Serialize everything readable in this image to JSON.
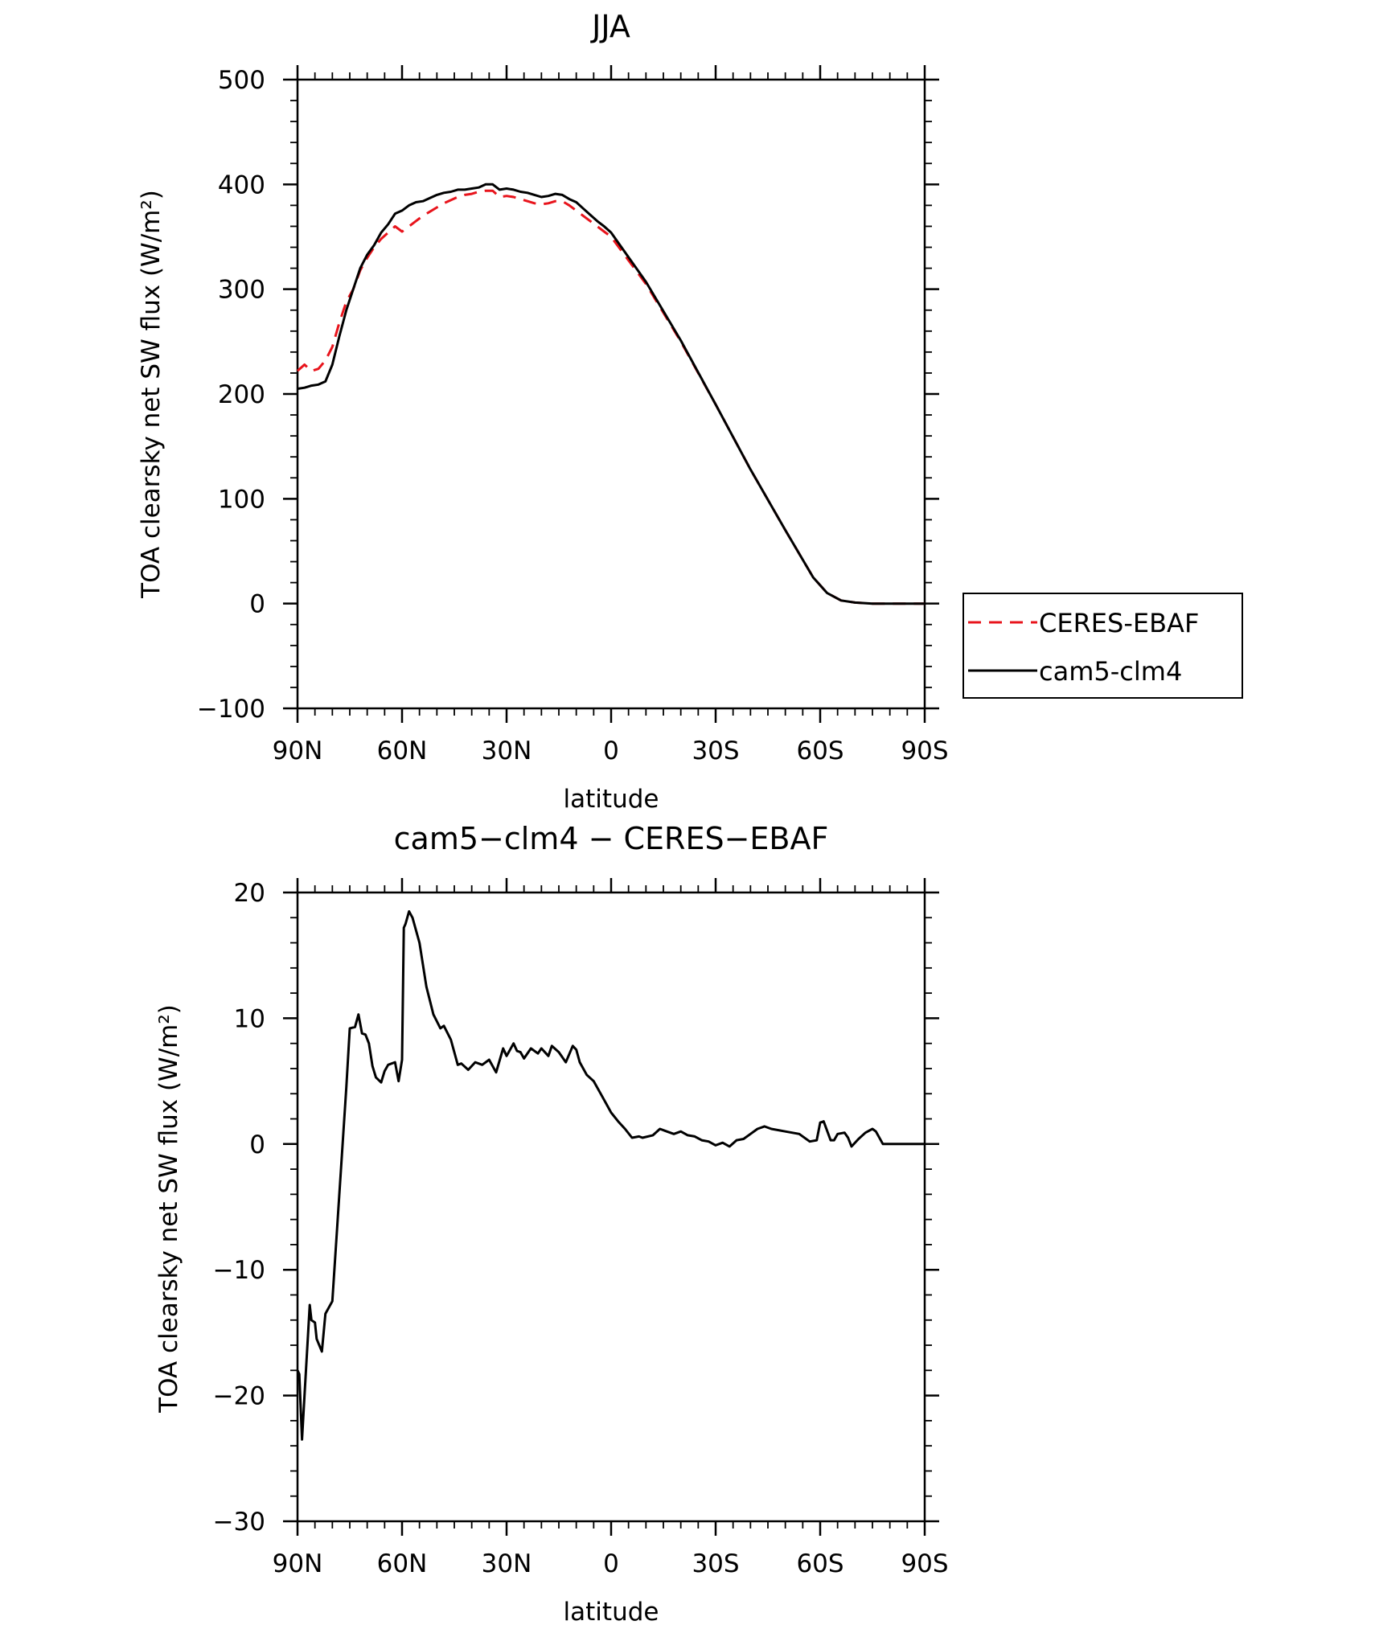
{
  "chart_data": [
    {
      "type": "line",
      "title": "JJA",
      "xlabel": "latitude",
      "ylabel": "TOA clearsky net SW flux (W/m²)",
      "xlim": [
        90,
        -90
      ],
      "ylim": [
        -100,
        500
      ],
      "xticks": [
        "90N",
        "60N",
        "30N",
        "0",
        "30S",
        "60S",
        "90S"
      ],
      "yticks": [
        "500",
        "400",
        "300",
        "200",
        "100",
        "0",
        "−100"
      ],
      "legend_position": "right",
      "series": [
        {
          "name": "CERES-EBAF",
          "style": "dashed",
          "color": "#e8141c",
          "x": [
            90,
            88,
            86,
            84,
            82,
            80,
            78,
            76,
            74,
            72,
            70,
            68,
            66,
            64,
            62,
            60,
            58,
            56,
            54,
            52,
            50,
            48,
            46,
            44,
            42,
            40,
            38,
            36,
            34,
            32,
            30,
            28,
            26,
            24,
            22,
            20,
            18,
            16,
            14,
            12,
            10,
            8,
            6,
            4,
            2,
            0,
            -10,
            -20,
            -30,
            -40,
            -50,
            -58,
            -62,
            -66,
            -70,
            -75,
            -80,
            -85,
            -90
          ],
          "y": [
            222,
            228,
            222,
            224,
            232,
            245,
            268,
            288,
            300,
            318,
            330,
            340,
            348,
            354,
            360,
            355,
            360,
            365,
            370,
            374,
            378,
            382,
            385,
            388,
            390,
            391,
            393,
            394,
            394,
            388,
            389,
            388,
            386,
            384,
            382,
            381,
            382,
            384,
            384,
            380,
            375,
            370,
            365,
            360,
            355,
            350,
            305,
            250,
            190,
            128,
            70,
            25,
            10,
            3,
            1,
            0,
            0,
            0,
            0
          ]
        },
        {
          "name": "cam5-clm4",
          "style": "solid",
          "color": "#000000",
          "x": [
            90,
            88,
            86,
            84,
            82,
            80,
            78,
            76,
            74,
            72,
            70,
            68,
            66,
            64,
            62,
            60,
            58,
            56,
            54,
            52,
            50,
            48,
            46,
            44,
            42,
            40,
            38,
            36,
            34,
            32,
            30,
            28,
            26,
            24,
            22,
            20,
            18,
            16,
            14,
            12,
            10,
            8,
            6,
            4,
            2,
            0,
            -10,
            -20,
            -30,
            -40,
            -50,
            -58,
            -62,
            -66,
            -70,
            -75,
            -80,
            -85,
            -90
          ],
          "y": [
            205,
            206,
            208,
            209,
            212,
            228,
            255,
            280,
            300,
            320,
            333,
            342,
            354,
            362,
            372,
            375,
            380,
            383,
            384,
            387,
            390,
            392,
            393,
            395,
            395,
            396,
            397,
            400,
            400,
            395,
            396,
            395,
            393,
            392,
            390,
            388,
            389,
            391,
            390,
            386,
            383,
            377,
            371,
            365,
            360,
            354,
            307,
            251,
            190,
            128,
            70,
            25,
            10,
            3,
            1,
            0,
            0,
            0,
            0
          ]
        }
      ]
    },
    {
      "type": "line",
      "title": "cam5−clm4 − CERES−EBAF",
      "xlabel": "latitude",
      "ylabel": "TOA clearsky net SW flux (W/m²)",
      "xlim": [
        90,
        -90
      ],
      "ylim": [
        -30,
        20
      ],
      "xticks": [
        "90N",
        "60N",
        "30N",
        "0",
        "30S",
        "60S",
        "90S"
      ],
      "yticks": [
        "20",
        "10",
        "0",
        "−10",
        "−20",
        "−30"
      ],
      "series": [
        {
          "style": "solid",
          "color": "#000000",
          "x": [
            90,
            89.5,
            88.7,
            88,
            86.5,
            86,
            85,
            84.5,
            83,
            82,
            80,
            78,
            76,
            75,
            73.5,
            72.5,
            71.5,
            70.5,
            69.5,
            68.5,
            67.5,
            66,
            65,
            64,
            62,
            61,
            60,
            59.5,
            59,
            58,
            57,
            55,
            53,
            51,
            49,
            48,
            46,
            45,
            44,
            43,
            41,
            39,
            37,
            35,
            33,
            31,
            30,
            28,
            27,
            26,
            25,
            23,
            21,
            20,
            18,
            17,
            15,
            13,
            11,
            10,
            9,
            7,
            5,
            3,
            1,
            0,
            -2,
            -4,
            -6,
            -8,
            -9,
            -12,
            -14,
            -16,
            -18,
            -20,
            -22,
            -24,
            -26,
            -28,
            -30,
            -32,
            -34,
            -36,
            -38,
            -40,
            -42,
            -44,
            -46,
            -50,
            -54,
            -57,
            -59,
            -60,
            -61,
            -63,
            -64,
            -65,
            -67,
            -68,
            -69,
            -71,
            -73,
            -75,
            -76,
            -78,
            -80,
            -90
          ],
          "y": [
            -18,
            -18.3,
            -23.5,
            -20,
            -12.8,
            -14,
            -14.2,
            -15.5,
            -16.5,
            -13.5,
            -12.5,
            -4,
            4.5,
            9.2,
            9.3,
            10.3,
            8.8,
            8.7,
            8.0,
            6.2,
            5.3,
            4.9,
            5.8,
            6.3,
            6.5,
            5.0,
            6.7,
            17.2,
            17.5,
            18.5,
            18.0,
            16.0,
            12.5,
            10.3,
            9.2,
            9.4,
            8.3,
            7.3,
            6.3,
            6.4,
            5.9,
            6.5,
            6.3,
            6.7,
            5.7,
            7.6,
            7.0,
            8.0,
            7.4,
            7.3,
            6.8,
            7.6,
            7.2,
            7.6,
            7.0,
            7.8,
            7.3,
            6.5,
            7.8,
            7.5,
            6.5,
            5.5,
            5.0,
            4.0,
            3.0,
            2.5,
            1.8,
            1.2,
            0.5,
            0.6,
            0.5,
            0.7,
            1.2,
            1.0,
            0.8,
            1.0,
            0.7,
            0.6,
            0.3,
            0.2,
            -0.1,
            0.1,
            -0.2,
            0.3,
            0.4,
            0.8,
            1.2,
            1.4,
            1.2,
            1.0,
            0.8,
            0.2,
            0.3,
            1.7,
            1.8,
            0.3,
            0.3,
            0.8,
            0.9,
            0.5,
            -0.2,
            0.4,
            0.9,
            1.2,
            1.0,
            0.0,
            0.0,
            0.0
          ]
        }
      ]
    }
  ]
}
